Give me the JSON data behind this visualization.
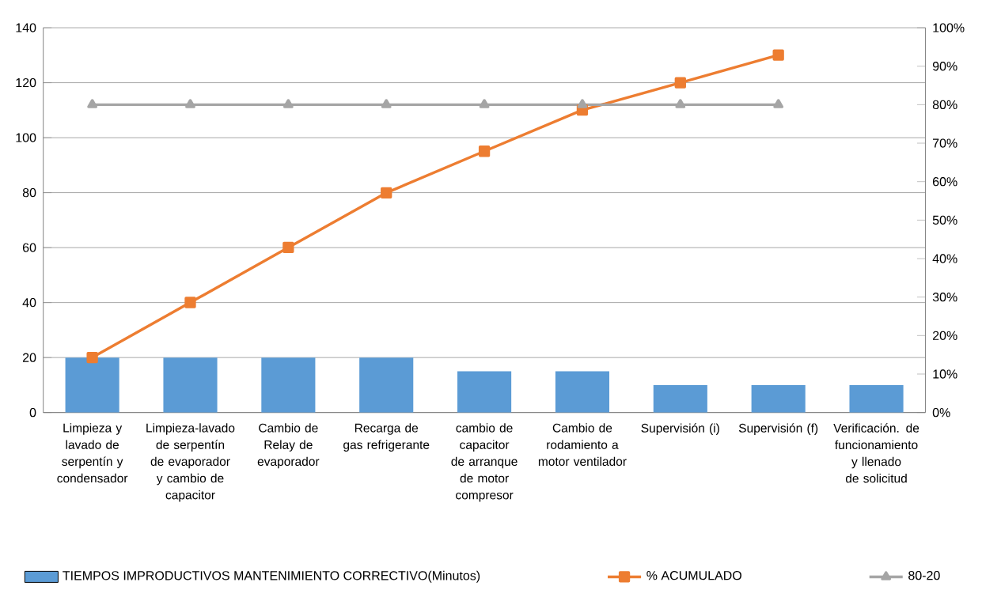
{
  "chart_data": {
    "type": "bar",
    "categories": [
      "Limpieza y lavado de serpentín y condensador",
      "Limpieza-lavado de serpentín de evaporador y cambio de capacitor",
      "Cambio de Relay de evaporador",
      "Recarga de gas refrigerante",
      "cambio de capacitor de arranque de motor compresor",
      "Cambio de rodamiento a motor ventilador",
      "Supervisión (i)",
      "Supervisión (f)",
      "Verificación. de funcionamiento y llenado de solicitud"
    ],
    "series": [
      {
        "name": "TIEMPOS  IMPRODUCTIVOS  MANTENIMIENTO   CORRECTIVO(Minutos)",
        "color": "#5b9bd5",
        "values": [
          20,
          20,
          20,
          20,
          15,
          15,
          10,
          10,
          10
        ]
      },
      {
        "name": "% ACUMULADO",
        "type": "line",
        "axis": "y2",
        "marker": "square",
        "color": "#ed7d31",
        "values": [
          14.3,
          28.6,
          42.9,
          57.1,
          67.9,
          78.6,
          85.7,
          92.9,
          null
        ]
      },
      {
        "name": "80-20",
        "type": "line",
        "axis": "y2",
        "marker": "triangle",
        "color": "#a5a5a5",
        "values": [
          80,
          80,
          80,
          80,
          80,
          80,
          80,
          80,
          null
        ]
      }
    ],
    "ylim": [
      0,
      140
    ],
    "yticks": [
      0,
      20,
      40,
      60,
      80,
      100,
      120,
      140
    ],
    "y2lim": [
      0,
      100
    ],
    "y2ticks": [
      {
        "value": 0,
        "label": "0%"
      },
      {
        "value": 10,
        "label": "10%"
      },
      {
        "value": 20,
        "label": "20%"
      },
      {
        "value": 30,
        "label": "30%"
      },
      {
        "value": 40,
        "label": "40%"
      },
      {
        "value": 50,
        "label": "50%"
      },
      {
        "value": 60,
        "label": "60%"
      },
      {
        "value": 70,
        "label": "70%"
      },
      {
        "value": 80,
        "label": "80%"
      },
      {
        "value": 90,
        "label": "90%"
      },
      {
        "value": 100,
        "label": "100%"
      }
    ],
    "grid": "y",
    "legend": "bottom"
  }
}
